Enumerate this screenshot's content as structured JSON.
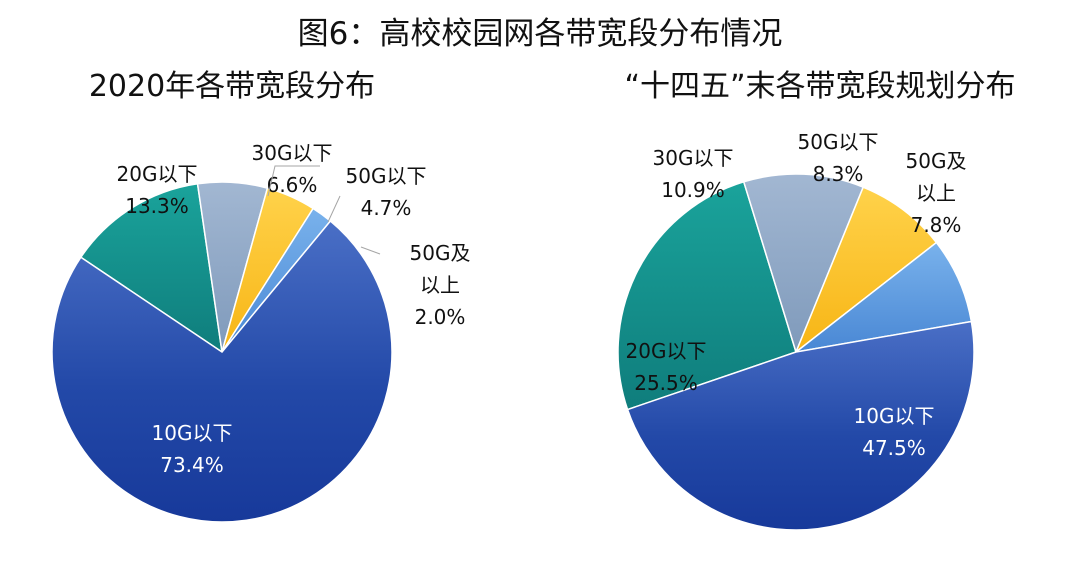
{
  "figure_title": "图6：高校校园网各带宽段分布情况",
  "chart_data": [
    {
      "type": "pie",
      "title": "2020年各带宽段分布",
      "slices": [
        {
          "label": "10G以下",
          "value": 73.4,
          "value_label": "73.4%",
          "color": "#1f47a3"
        },
        {
          "label": "20G以下",
          "value": 13.3,
          "value_label": "13.3%",
          "color": "#16938d"
        },
        {
          "label": "30G以下",
          "value": 6.6,
          "value_label": "6.6%",
          "color": "#8fa9c8"
        },
        {
          "label": "50G以下",
          "value": 4.7,
          "value_label": "4.7%",
          "color": "#ffc42e"
        },
        {
          "label": "50G及以上",
          "value": 2.0,
          "value_label": "2.0%",
          "color": "#5b9be0"
        }
      ]
    },
    {
      "type": "pie",
      "title": "“十四五”末各带宽段规划分布",
      "slices": [
        {
          "label": "10G以下",
          "value": 47.5,
          "value_label": "47.5%",
          "color": "#1f47a3"
        },
        {
          "label": "20G以下",
          "value": 25.5,
          "value_label": "25.5%",
          "color": "#16938d"
        },
        {
          "label": "30G以下",
          "value": 10.9,
          "value_label": "10.9%",
          "color": "#8fa9c8"
        },
        {
          "label": "50G以下",
          "value": 8.3,
          "value_label": "8.3%",
          "color": "#ffc42e"
        },
        {
          "label": "50G及以上",
          "value": 7.8,
          "value_label": "7.8%",
          "color": "#5b9be0"
        }
      ]
    }
  ]
}
